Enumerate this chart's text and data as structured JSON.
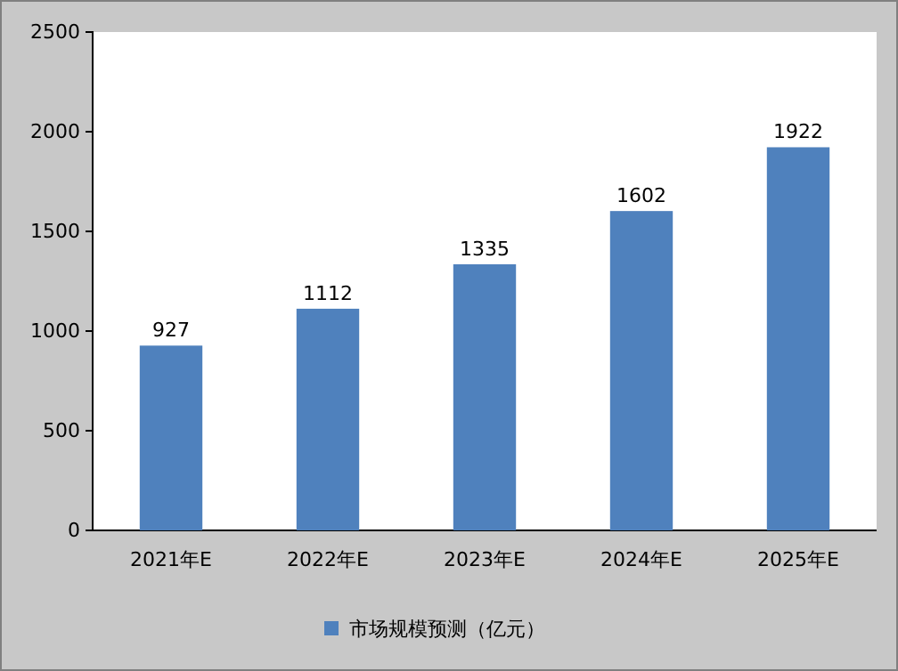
{
  "chart_data": {
    "type": "bar",
    "categories": [
      "2021年E",
      "2022年E",
      "2023年E",
      "2024年E",
      "2025年E"
    ],
    "series": [
      {
        "name": "市场规模预测（亿元）",
        "color": "#4f81bd",
        "values": [
          927,
          1112,
          1335,
          1602,
          1922
        ]
      }
    ],
    "ylim": [
      0,
      2500
    ],
    "yticks": [
      0,
      500,
      1000,
      1500,
      2000,
      2500
    ],
    "data_labels": true,
    "legend": "bottom"
  }
}
